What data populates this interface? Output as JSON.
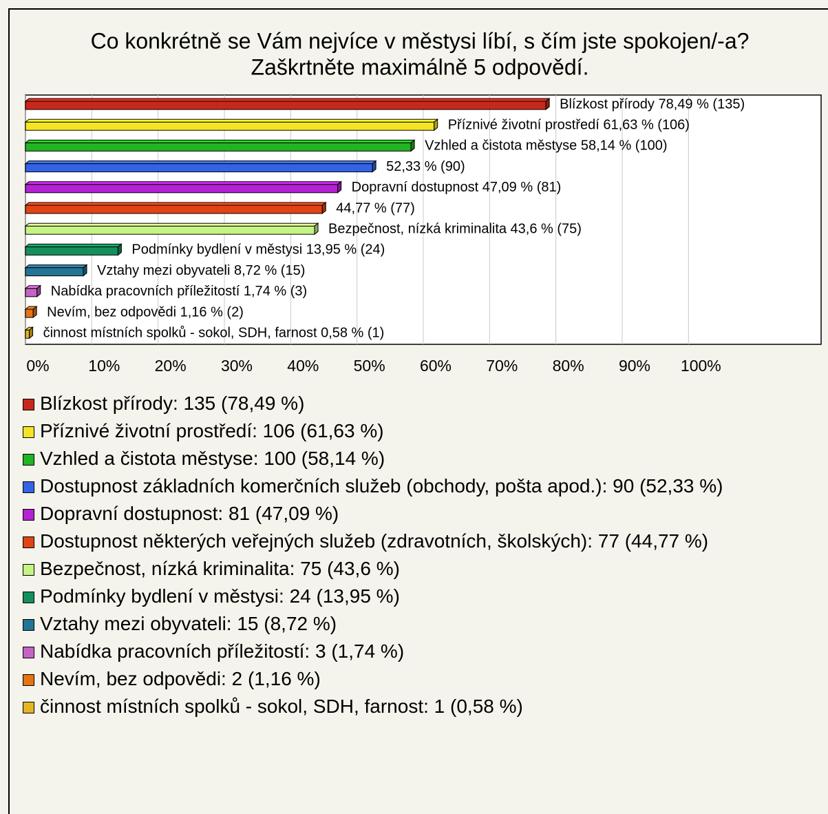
{
  "chart_data": {
    "type": "bar",
    "orientation": "horizontal",
    "title": [
      "Co konkrétně se Vám nejvíce v městysi líbí, s čím jste spokojen/-a?",
      "Zaškrtněte maximálně 5 odpovědí."
    ],
    "xlim": [
      0,
      120
    ],
    "xticks": [
      {
        "value": 0,
        "label": "0%"
      },
      {
        "value": 10,
        "label": "10%"
      },
      {
        "value": 20,
        "label": "20%"
      },
      {
        "value": 30,
        "label": "30%"
      },
      {
        "value": 40,
        "label": "40%"
      },
      {
        "value": 50,
        "label": "50%"
      },
      {
        "value": 60,
        "label": "60%"
      },
      {
        "value": 70,
        "label": "70%"
      },
      {
        "value": 80,
        "label": "80%"
      },
      {
        "value": 90,
        "label": "90%"
      },
      {
        "value": 100,
        "label": "100%"
      }
    ],
    "grid": true,
    "series": [
      {
        "name": "Blízkost přírody: 135 (78,49 %)",
        "color": "#c8281c",
        "values": [
          78.49
        ],
        "value_labels": [
          "Blízkost přírody 78,49 % (135)"
        ]
      },
      {
        "name": "Příznivé životní prostředí: 106 (61,63 %)",
        "color": "#f4e424",
        "values": [
          61.63
        ],
        "value_labels": [
          "Příznivé životní prostředí 61,63 % (106)"
        ]
      },
      {
        "name": "Vzhled a čistota městyse: 100 (58,14 %)",
        "color": "#22b422",
        "values": [
          58.14
        ],
        "value_labels": [
          "Vzhled a čistota městyse 58,14 % (100)"
        ]
      },
      {
        "name": "Dostupnost základních komerčních služeb (obchody, pošta apod.): 90 (52,33 %)",
        "color": "#3464e4",
        "values": [
          52.33
        ],
        "value_labels": [
          "52,33 % (90)"
        ]
      },
      {
        "name": "Dopravní dostupnost: 81 (47,09 %)",
        "color": "#b422d4",
        "values": [
          47.09
        ],
        "value_labels": [
          "Dopravní dostupnost 47,09 % (81)"
        ]
      },
      {
        "name": "Dostupnost některých veřejných služeb (zdravotních, školských): 77 (44,77 %)",
        "color": "#e04414",
        "values": [
          44.77
        ],
        "value_labels": [
          "44,77 % (77)"
        ]
      },
      {
        "name": "Bezpečnost, nízká kriminalita: 75 (43,6 %)",
        "color": "#c4f484",
        "values": [
          43.6
        ],
        "value_labels": [
          "Bezpečnost, nízká kriminalita 43,6 % (75)"
        ]
      },
      {
        "name": "Podmínky bydlení v městysi: 24 (13,95 %)",
        "color": "#14905c",
        "values": [
          13.95
        ],
        "value_labels": [
          "Podmínky bydlení v městysi 13,95 % (24)"
        ]
      },
      {
        "name": "Vztahy mezi obyvateli: 15 (8,72 %)",
        "color": "#247494",
        "values": [
          8.72
        ],
        "value_labels": [
          "Vztahy mezi obyvateli 8,72 % (15)"
        ]
      },
      {
        "name": "Nabídka pracovních příležitostí: 3 (1,74 %)",
        "color": "#c464c4",
        "values": [
          1.74
        ],
        "value_labels": [
          "Nabídka pracovních příležitostí 1,74 % (3)"
        ]
      },
      {
        "name": "Nevím, bez odpovědi: 2 (1,16 %)",
        "color": "#e47414",
        "values": [
          1.16
        ],
        "value_labels": [
          "Nevím, bez odpovědi 1,16 % (2)"
        ]
      },
      {
        "name": "činnost místních spolků - sokol, SDH, farnost: 1 (0,58 %)",
        "color": "#e4b424",
        "values": [
          0.58
        ],
        "value_labels": [
          "činnost místních spolků - sokol, SDH, farnost 0,58 % (1)"
        ]
      }
    ]
  }
}
